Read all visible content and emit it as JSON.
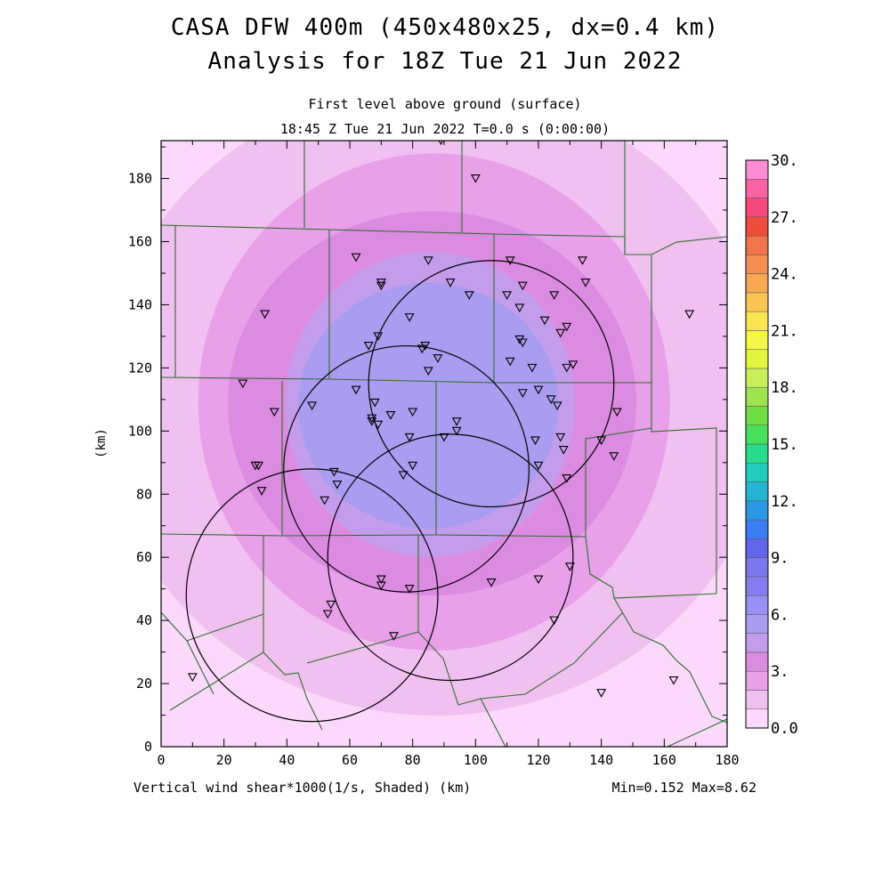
{
  "header": {
    "title_line1": "CASA DFW 400m (450x480x25, dx=0.4 km)",
    "title_line2": "Analysis for 18Z Tue 21 Jun 2022",
    "subtitle_line1": "First level above ground (surface)",
    "subtitle_line2": "18:45 Z Tue 21 Jun 2022    T=0.0 s (0:00:00)"
  },
  "footer": {
    "field_label": "Vertical wind shear*1000(1/s, Shaded)  (km)",
    "stats": "Min=0.152 Max=8.62"
  },
  "chart_data": {
    "type": "heatmap",
    "xlabel": "",
    "ylabel": "(km)",
    "xlim": [
      0,
      180
    ],
    "ylim": [
      0,
      192
    ],
    "x_ticks": [
      0,
      20,
      40,
      60,
      80,
      100,
      120,
      140,
      160,
      180
    ],
    "y_ticks": [
      0,
      20,
      40,
      60,
      80,
      100,
      120,
      140,
      160,
      180
    ],
    "field": {
      "name": "Vertical wind shear*1000 (1/s)",
      "min": 0.152,
      "max": 8.62,
      "center_of_max": [
        88,
        110
      ]
    },
    "colorbar": {
      "levels_min": 0.0,
      "levels_max": 30.0,
      "step": 1.5,
      "labels": [
        {
          "value": 0.0,
          "text": "0.0"
        },
        {
          "value": 3.0,
          "text": "3."
        },
        {
          "value": 6.0,
          "text": "6."
        },
        {
          "value": 9.0,
          "text": "9."
        },
        {
          "value": 12.0,
          "text": "12."
        },
        {
          "value": 15.0,
          "text": "15."
        },
        {
          "value": 18.0,
          "text": "18."
        },
        {
          "value": 21.0,
          "text": "21."
        },
        {
          "value": 24.0,
          "text": "24."
        },
        {
          "value": 27.0,
          "text": "27."
        },
        {
          "value": 30.0,
          "text": "30."
        }
      ],
      "colors": [
        "#fcd8fc",
        "#f0c0f0",
        "#e8a0e8",
        "#dc8ce0",
        "#c49cec",
        "#aa9cf0",
        "#9890f4",
        "#867ef0",
        "#7a78ec",
        "#6266ec",
        "#3a7ef4",
        "#2a98e4",
        "#26b4d4",
        "#22ccbc",
        "#26dc8c",
        "#46e05a",
        "#6ee046",
        "#9ee44e",
        "#c8ee5a",
        "#e4f43c",
        "#f6f646",
        "#fae450",
        "#fcc454",
        "#f8a852",
        "#f48e52",
        "#f2744a",
        "#f04c3c",
        "#f6487c",
        "#fa62a6",
        "#fc8cd4"
      ]
    },
    "radar_circles": [
      {
        "center": [
          48,
          48
        ],
        "radius": 40
      },
      {
        "center": [
          105,
          115
        ],
        "radius": 39
      },
      {
        "center": [
          78,
          88
        ],
        "radius": 39
      },
      {
        "center": [
          92,
          60
        ],
        "radius": 39
      }
    ],
    "stations": [
      [
        89,
        192
      ],
      [
        100,
        180
      ],
      [
        62,
        155
      ],
      [
        85,
        154
      ],
      [
        70,
        147
      ],
      [
        70,
        146
      ],
      [
        92,
        147
      ],
      [
        111,
        154
      ],
      [
        134,
        154
      ],
      [
        135,
        147
      ],
      [
        110,
        143
      ],
      [
        115,
        146
      ],
      [
        125,
        143
      ],
      [
        33,
        137
      ],
      [
        79,
        136
      ],
      [
        98,
        143
      ],
      [
        114,
        139
      ],
      [
        122,
        135
      ],
      [
        129,
        133
      ],
      [
        127,
        131
      ],
      [
        69,
        130
      ],
      [
        66,
        127
      ],
      [
        84,
        127
      ],
      [
        83,
        126
      ],
      [
        114,
        129
      ],
      [
        115,
        128
      ],
      [
        88,
        123
      ],
      [
        111,
        122
      ],
      [
        118,
        120
      ],
      [
        131,
        121
      ],
      [
        129,
        120
      ],
      [
        26,
        115
      ],
      [
        85,
        119
      ],
      [
        62,
        113
      ],
      [
        115,
        112
      ],
      [
        120,
        113
      ],
      [
        124,
        110
      ],
      [
        126,
        108
      ],
      [
        145,
        106
      ],
      [
        36,
        106
      ],
      [
        48,
        108
      ],
      [
        68,
        109
      ],
      [
        67,
        104
      ],
      [
        67,
        103
      ],
      [
        73,
        105
      ],
      [
        80,
        106
      ],
      [
        69,
        102
      ],
      [
        94,
        103
      ],
      [
        79,
        98
      ],
      [
        90,
        98
      ],
      [
        94,
        100
      ],
      [
        119,
        97
      ],
      [
        127,
        98
      ],
      [
        128,
        94
      ],
      [
        140,
        97
      ],
      [
        144,
        92
      ],
      [
        30,
        89
      ],
      [
        31,
        89
      ],
      [
        32,
        81
      ],
      [
        80,
        89
      ],
      [
        120,
        89
      ],
      [
        77,
        86
      ],
      [
        129,
        85
      ],
      [
        55,
        87
      ],
      [
        56,
        83
      ],
      [
        52,
        78
      ],
      [
        130,
        57
      ],
      [
        120,
        53
      ],
      [
        105,
        52
      ],
      [
        70,
        53
      ],
      [
        70,
        51
      ],
      [
        79,
        50
      ],
      [
        54,
        45
      ],
      [
        53,
        42
      ],
      [
        74,
        35
      ],
      [
        125,
        40
      ],
      [
        10,
        22
      ],
      [
        140,
        17
      ],
      [
        163,
        21
      ],
      [
        168,
        137
      ]
    ],
    "boundaries_description": "County boundary lines (dark green)"
  }
}
